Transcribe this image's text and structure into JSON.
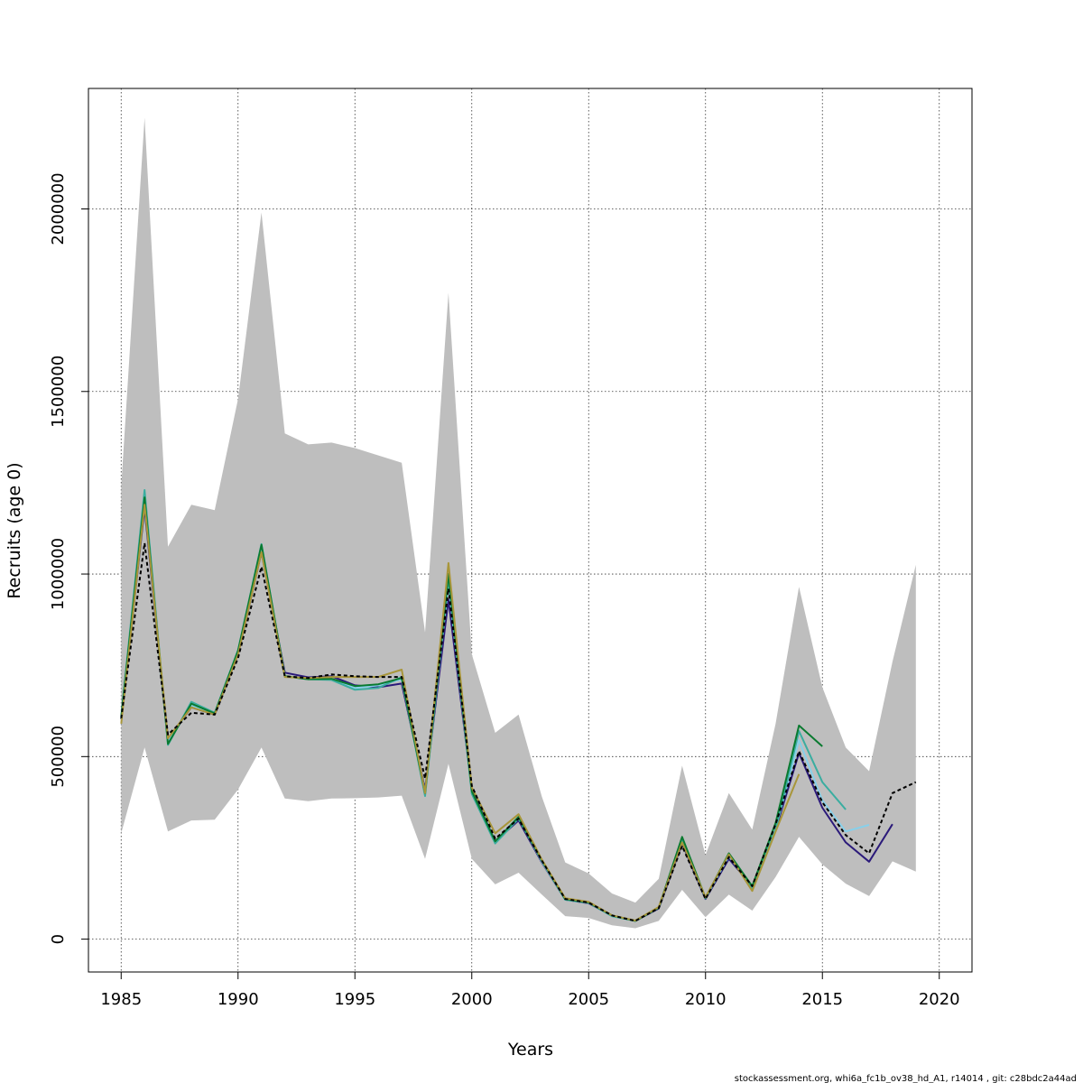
{
  "chart_data": {
    "type": "line",
    "xlabel": "Years",
    "ylabel": "Recruits (age 0)",
    "xlim": [
      1983.6,
      2021.4
    ],
    "ylim": [
      -90000,
      2330000
    ],
    "x_ticks": [
      1985,
      1990,
      1995,
      2000,
      2005,
      2010,
      2015,
      2020
    ],
    "y_ticks": [
      0,
      500000,
      1000000,
      1500000,
      2000000
    ],
    "grid": true,
    "footer": "stockassessment.org, whi6a_fc1b_ov38_hd_A1, r14014 , git: c28bdc2a44ad",
    "confidence_band": {
      "color": "#bebebe",
      "x": [
        1985,
        1986,
        1987,
        1988,
        1989,
        1990,
        1991,
        1992,
        1993,
        1994,
        1995,
        1996,
        1997,
        1998,
        1999,
        2000,
        2001,
        2002,
        2003,
        2004,
        2005,
        2006,
        2007,
        2008,
        2009,
        2010,
        2011,
        2012,
        2013,
        2014,
        2015,
        2016,
        2017,
        2018,
        2019
      ],
      "upper": [
        1240000,
        2250000,
        1075000,
        1190000,
        1175000,
        1480000,
        1990000,
        1385000,
        1355000,
        1360000,
        1345000,
        1325000,
        1305000,
        840000,
        1770000,
        780000,
        565000,
        615000,
        390000,
        210000,
        180000,
        125000,
        100000,
        165000,
        475000,
        230000,
        400000,
        300000,
        590000,
        965000,
        690000,
        525000,
        460000,
        760000,
        1025000
      ],
      "lower": [
        290000,
        525000,
        295000,
        325000,
        327000,
        410000,
        525000,
        385000,
        378000,
        385000,
        386000,
        388000,
        393000,
        220000,
        480000,
        220000,
        150000,
        182000,
        122000,
        63000,
        58000,
        38000,
        30000,
        50000,
        135000,
        60000,
        122000,
        78000,
        170000,
        280000,
        205000,
        152000,
        118000,
        213000,
        185000
      ]
    },
    "series": [
      {
        "color": "#000000",
        "dash": true,
        "x": [
          1985,
          1986,
          1987,
          1988,
          1989,
          1990,
          1991,
          1992,
          1993,
          1994,
          1995,
          1996,
          1997,
          1998,
          1999,
          2000,
          2001,
          2002,
          2003,
          2004,
          2005,
          2006,
          2007,
          2008,
          2009,
          2010,
          2011,
          2012,
          2013,
          2014,
          2015,
          2016,
          2017,
          2018,
          2019
        ],
        "values": [
          605000,
          1085000,
          560000,
          620000,
          615000,
          770000,
          1020000,
          720000,
          715000,
          725000,
          720000,
          718000,
          718000,
          440000,
          960000,
          420000,
          275000,
          330000,
          215000,
          110000,
          100000,
          65000,
          50000,
          85000,
          255000,
          110000,
          225000,
          145000,
          315000,
          515000,
          375000,
          285000,
          235000,
          400000,
          430000
        ]
      },
      {
        "color": "#2b1a7a",
        "x": [
          1985,
          1986,
          1987,
          1988,
          1989,
          1990,
          1991,
          1992,
          1993,
          1994,
          1995,
          1996,
          1997,
          1998,
          1999,
          2000,
          2001,
          2002,
          2003,
          2004,
          2005,
          2006,
          2007,
          2008,
          2009,
          2010,
          2011,
          2012,
          2013,
          2014,
          2015,
          2016,
          2017,
          2018
        ],
        "values": [
          602000,
          1180000,
          548000,
          635000,
          615000,
          780000,
          1060000,
          730000,
          717000,
          720000,
          695000,
          690000,
          700000,
          410000,
          930000,
          410000,
          268000,
          325000,
          210000,
          108000,
          98000,
          64000,
          50000,
          84000,
          262000,
          110000,
          220000,
          145000,
          300000,
          510000,
          360000,
          265000,
          212000,
          315000
        ]
      },
      {
        "color": "#87d0ea",
        "x": [
          1985,
          1986,
          1987,
          1988,
          1989,
          1990,
          1991,
          1992,
          1993,
          1994,
          1995,
          1996,
          1997,
          1998,
          1999,
          2000,
          2001,
          2002,
          2003,
          2004,
          2005,
          2006,
          2007,
          2008,
          2009,
          2010,
          2011,
          2012,
          2013,
          2014,
          2015,
          2016,
          2017
        ],
        "values": [
          604000,
          1215000,
          540000,
          640000,
          618000,
          785000,
          1075000,
          720000,
          713000,
          712000,
          688000,
          695000,
          712000,
          402000,
          975000,
          402000,
          268000,
          332000,
          212000,
          108000,
          99000,
          63000,
          50000,
          86000,
          270000,
          112000,
          228000,
          142000,
          302000,
          545000,
          380000,
          295000,
          313000
        ]
      },
      {
        "color": "#3aada0",
        "x": [
          1985,
          1986,
          1987,
          1988,
          1989,
          1990,
          1991,
          1992,
          1993,
          1994,
          1995,
          1996,
          1997,
          1998,
          1999,
          2000,
          2001,
          2002,
          2003,
          2004,
          2005,
          2006,
          2007,
          2008,
          2009,
          2010,
          2011,
          2012,
          2013,
          2014,
          2015,
          2016
        ],
        "values": [
          610000,
          1230000,
          532000,
          650000,
          620000,
          792000,
          1082000,
          720000,
          712000,
          710000,
          683000,
          688000,
          718000,
          392000,
          990000,
          398000,
          262000,
          330000,
          215000,
          108000,
          100000,
          63000,
          50000,
          86000,
          272000,
          113000,
          232000,
          140000,
          300000,
          570000,
          430000,
          355000
        ]
      },
      {
        "color": "#0a7a30",
        "x": [
          1985,
          1986,
          1987,
          1988,
          1989,
          1990,
          1991,
          1992,
          1993,
          1994,
          1995,
          1996,
          1997,
          1998,
          1999,
          2000,
          2001,
          2002,
          2003,
          2004,
          2005,
          2006,
          2007,
          2008,
          2009,
          2010,
          2011,
          2012,
          2013,
          2014,
          2015
        ],
        "values": [
          606000,
          1210000,
          535000,
          645000,
          618000,
          790000,
          1080000,
          720000,
          712000,
          713000,
          693000,
          698000,
          715000,
          400000,
          1000000,
          405000,
          268000,
          335000,
          215000,
          110000,
          100000,
          65000,
          50000,
          86000,
          280000,
          113000,
          235000,
          145000,
          318000,
          585000,
          528000
        ]
      },
      {
        "color": "#a8963a",
        "x": [
          1985,
          1986,
          1987,
          1988,
          1989,
          1990,
          1991,
          1992,
          1993,
          1994,
          1995,
          1996,
          1997,
          1998,
          1999,
          2000,
          2001,
          2002,
          2003,
          2004,
          2005,
          2006,
          2007,
          2008,
          2009,
          2010,
          2011,
          2012,
          2013,
          2014
        ],
        "values": [
          590000,
          1190000,
          550000,
          635000,
          615000,
          780000,
          1060000,
          718000,
          715000,
          718000,
          718000,
          718000,
          738000,
          400000,
          1030000,
          415000,
          290000,
          342000,
          218000,
          112000,
          102000,
          65000,
          51000,
          88000,
          265000,
          115000,
          232000,
          132000,
          295000,
          452000
        ]
      }
    ]
  }
}
